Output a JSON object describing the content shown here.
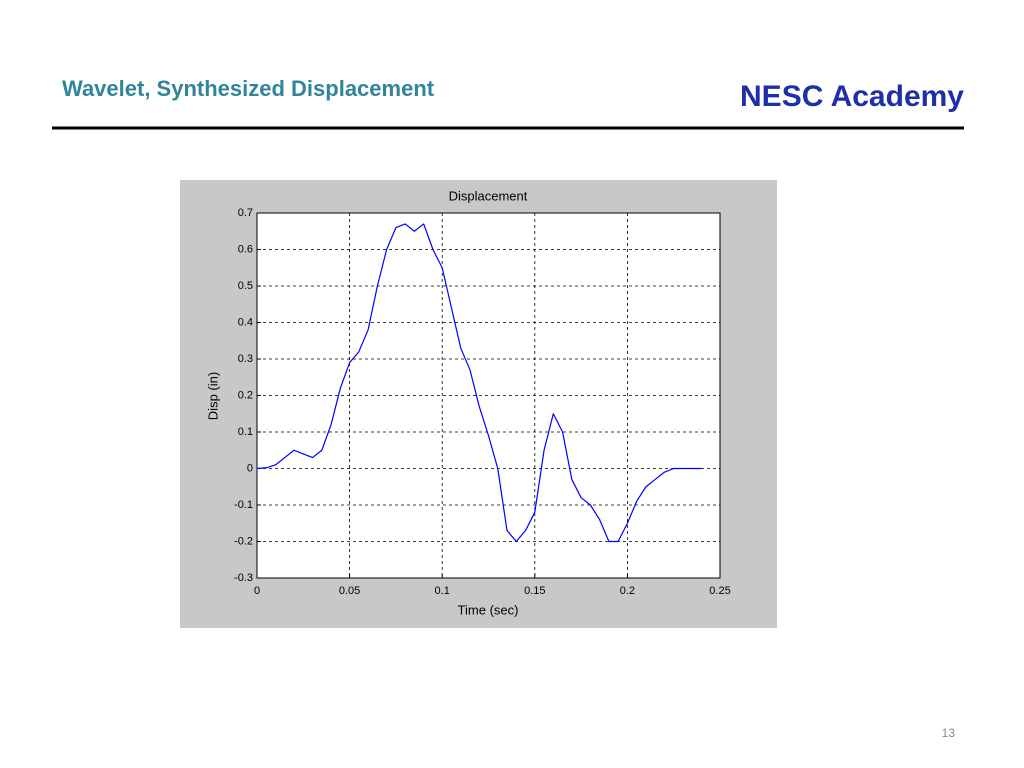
{
  "header": {
    "title": "Wavelet, Synthesized Displacement",
    "brand": "NESC Academy"
  },
  "page_number": "13",
  "chart_data": {
    "type": "line",
    "title": "Displacement",
    "x_label": "Time (sec)",
    "y_label": "Disp (in)",
    "x": [
      0,
      0.005,
      0.01,
      0.015,
      0.02,
      0.025,
      0.03,
      0.035,
      0.04,
      0.045,
      0.05,
      0.055,
      0.06,
      0.065,
      0.07,
      0.075,
      0.08,
      0.085,
      0.09,
      0.095,
      0.1,
      0.105,
      0.11,
      0.115,
      0.12,
      0.125,
      0.13,
      0.135,
      0.14,
      0.145,
      0.15,
      0.155,
      0.16,
      0.165,
      0.17,
      0.175,
      0.18,
      0.185,
      0.19,
      0.195,
      0.2,
      0.205,
      0.21,
      0.215,
      0.22,
      0.225,
      0.23,
      0.235,
      0.24
    ],
    "values": [
      0,
      0.002,
      0.01,
      0.03,
      0.05,
      0.04,
      0.03,
      0.05,
      0.12,
      0.22,
      0.29,
      0.32,
      0.38,
      0.5,
      0.6,
      0.66,
      0.67,
      0.65,
      0.67,
      0.6,
      0.55,
      0.44,
      0.33,
      0.27,
      0.17,
      0.09,
      0.0,
      -0.17,
      -0.2,
      -0.17,
      -0.12,
      0.05,
      0.15,
      0.1,
      -0.03,
      -0.08,
      -0.1,
      -0.14,
      -0.2,
      -0.2,
      -0.15,
      -0.09,
      -0.05,
      -0.03,
      -0.01,
      0.0,
      0.0,
      0,
      0
    ],
    "color": "#0000ff",
    "xlim": [
      0,
      0.25
    ],
    "xticks": [
      0,
      0.05,
      0.1,
      0.15,
      0.2,
      0.25
    ],
    "ylim": [
      -0.3,
      0.7
    ],
    "yticks": [
      -0.3,
      -0.2,
      -0.1,
      0,
      0.1,
      0.2,
      0.3,
      0.4,
      0.5,
      0.6,
      0.7
    ],
    "grid": true
  }
}
